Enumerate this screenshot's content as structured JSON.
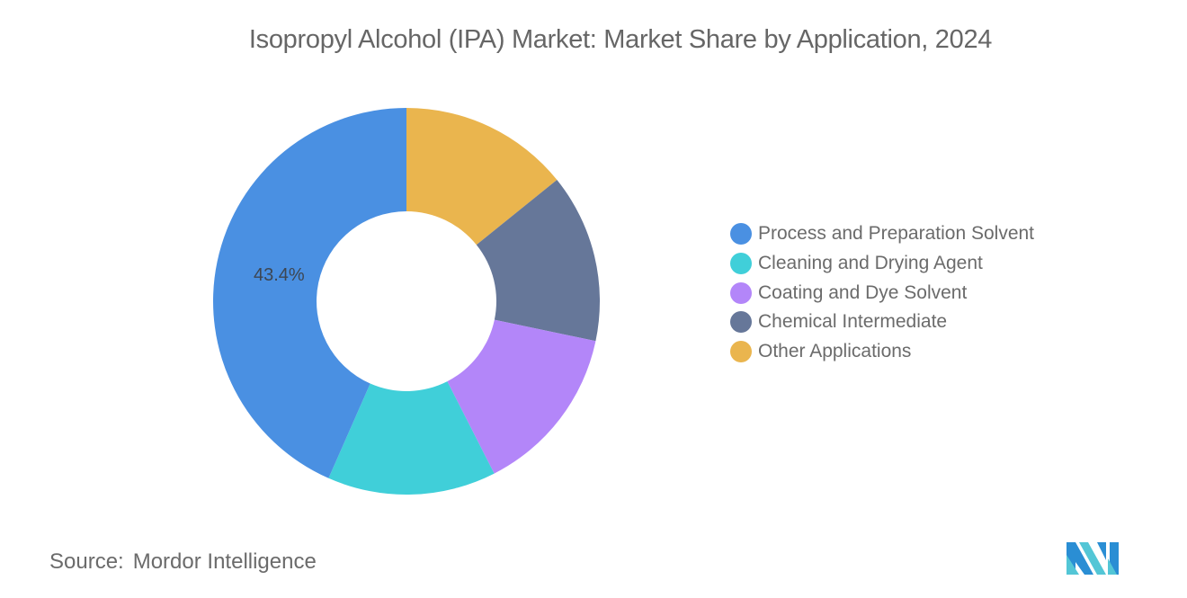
{
  "title": "Isopropyl Alcohol (IPA) Market: Market Share by Application, 2024",
  "source": {
    "label": "Source:",
    "value": "Mordor Intelligence"
  },
  "logo": {
    "icon": "mordor-intelligence-logo-icon"
  },
  "chart_data": {
    "type": "pie",
    "variant": "donut",
    "title": "Isopropyl Alcohol (IPA) Market: Market Share by Application, 2024",
    "categories": [
      "Process and Preparation Solvent",
      "Cleaning and Drying Agent",
      "Coating and Dye Solvent",
      "Chemical Intermediate",
      "Other Applications"
    ],
    "values": [
      43.4,
      14.1,
      14.2,
      14.1,
      14.2
    ],
    "colors": [
      "#4a90e2",
      "#40cfd9",
      "#b386f9",
      "#667799",
      "#eab54e"
    ],
    "data_labels": [
      {
        "category": "Process and Preparation Solvent",
        "text": "43.4%"
      }
    ],
    "legend_position": "right",
    "start_angle": 0,
    "direction": "counterclockwise-from-top for first slice",
    "note": "Only the 43.4% label is shown; other slice values estimated from angles."
  },
  "legend": {
    "items": [
      {
        "label": "Process and Preparation Solvent",
        "color": "#4a90e2"
      },
      {
        "label": "Cleaning and Drying Agent",
        "color": "#40cfd9"
      },
      {
        "label": "Coating and Dye Solvent",
        "color": "#b386f9"
      },
      {
        "label": "Chemical Intermediate",
        "color": "#667799"
      },
      {
        "label": "Other Applications",
        "color": "#eab54e"
      }
    ]
  }
}
